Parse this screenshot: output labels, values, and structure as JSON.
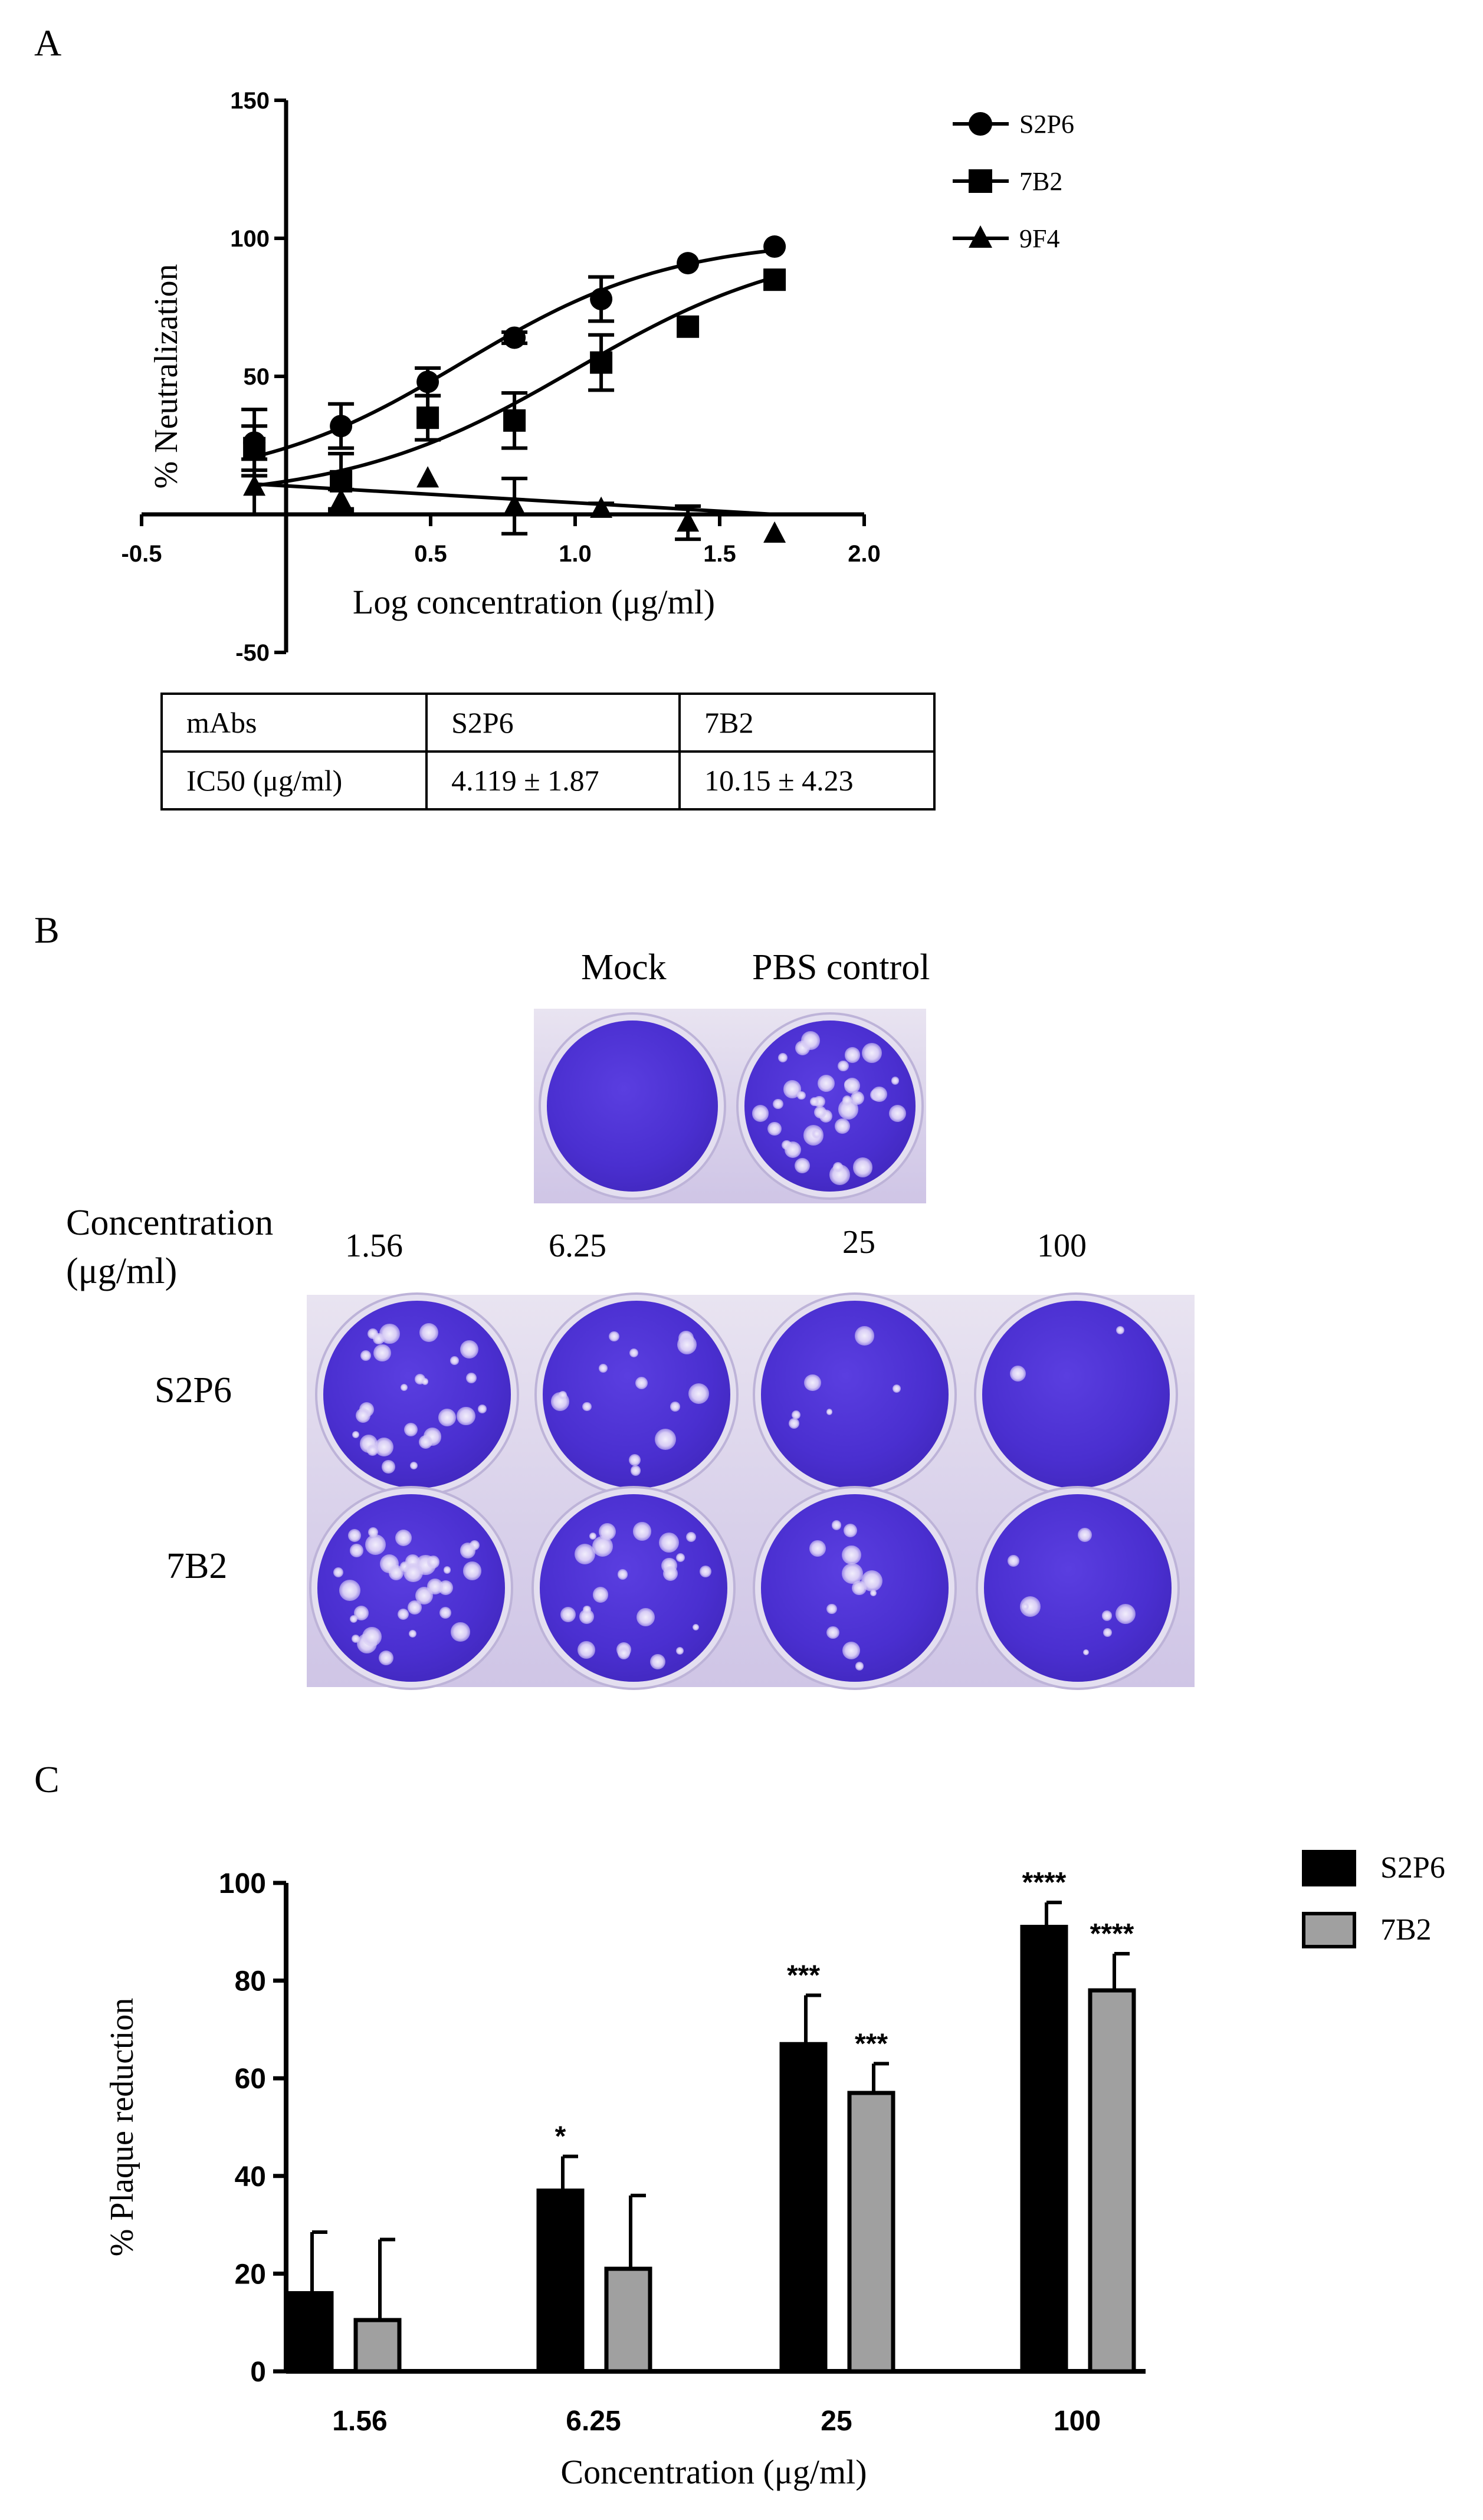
{
  "panels": {
    "a": "A",
    "b": "B",
    "c": "C"
  },
  "chart_data": [
    {
      "type": "scatter",
      "panel": "A",
      "xlabel": "Log concentration (μg/ml)",
      "ylabel": "% Neutralization",
      "xlim": [
        -0.5,
        2.0
      ],
      "ylim": [
        -50,
        150
      ],
      "x_ticks": [
        -0.5,
        0.5,
        1.0,
        1.5,
        2.0
      ],
      "x_tick_labels": [
        "-0.5",
        "0.5",
        "1.0",
        "1.5",
        "2.0"
      ],
      "y_ticks": [
        -50,
        50,
        100,
        150
      ],
      "y_tick_labels": [
        "-50",
        "50",
        "100",
        "150"
      ],
      "legend_position": "top-right",
      "series": [
        {
          "name": "S2P6",
          "marker": "circle",
          "x": [
            -0.11,
            0.19,
            0.49,
            0.79,
            1.09,
            1.39,
            1.69
          ],
          "y": [
            26,
            32,
            48,
            64,
            78,
            91,
            97
          ],
          "err": [
            12,
            8,
            5,
            2,
            8,
            0,
            0
          ],
          "fit": {
            "bottom": 10,
            "top": 100,
            "logec50": 0.61,
            "hill": 1.2
          }
        },
        {
          "name": "7B2",
          "marker": "square",
          "x": [
            -0.11,
            0.19,
            0.49,
            0.79,
            1.09,
            1.39,
            1.69
          ],
          "y": [
            24,
            12,
            35,
            34,
            55,
            68,
            85
          ],
          "err": [
            8,
            10,
            8,
            10,
            10,
            0,
            0
          ],
          "fit": {
            "bottom": 5,
            "top": 100,
            "logec50": 1.0,
            "hill": 1.1
          }
        },
        {
          "name": "9F4",
          "marker": "triangle",
          "x": [
            -0.11,
            0.19,
            0.49,
            0.79,
            1.09,
            1.39,
            1.69
          ],
          "y": [
            10,
            5,
            13,
            3,
            2,
            -3,
            -7
          ],
          "err": [
            10,
            4,
            0,
            10,
            2,
            6,
            0
          ],
          "fit": {
            "line": [
              [
                -0.11,
                11
              ],
              [
                1.69,
                0
              ]
            ]
          }
        }
      ]
    },
    {
      "type": "bar",
      "panel": "C",
      "xlabel": "Concentration (μg/ml)",
      "ylabel": "% Plaque reduction",
      "ylim": [
        0,
        100
      ],
      "y_ticks": [
        0,
        20,
        40,
        60,
        80,
        100
      ],
      "y_tick_labels": [
        "0",
        "20",
        "40",
        "60",
        "80",
        "100"
      ],
      "categories": [
        "1.56",
        "6.25",
        "25",
        "100"
      ],
      "legend_position": "top-right",
      "series": [
        {
          "name": "S2P6",
          "color": "#000000",
          "values": [
            16,
            37,
            67,
            91
          ],
          "err": [
            12.5,
            7,
            10,
            5
          ],
          "significance": [
            "",
            "*",
            "***",
            "****"
          ]
        },
        {
          "name": "7B2",
          "color": "#a0a0a0",
          "values": [
            10.5,
            21,
            57,
            78
          ],
          "err": [
            16.5,
            15,
            6,
            7.5
          ],
          "significance": [
            "",
            "",
            "***",
            "****"
          ]
        }
      ]
    }
  ],
  "ic50_table": {
    "headers": [
      "mAbs",
      "S2P6",
      "7B2"
    ],
    "row": [
      "IC50 (μg/ml)",
      "4.119 ± 1.87",
      "10.15 ± 4.23"
    ]
  },
  "plate_panel": {
    "top_labels": [
      "Mock",
      "PBS control"
    ],
    "concentration_label_line1": "Concentration",
    "concentration_label_line2": "(μg/ml)",
    "concentrations": [
      "1.56",
      "6.25",
      "25",
      "100"
    ],
    "row_labels": [
      "S2P6",
      "7B2"
    ]
  }
}
